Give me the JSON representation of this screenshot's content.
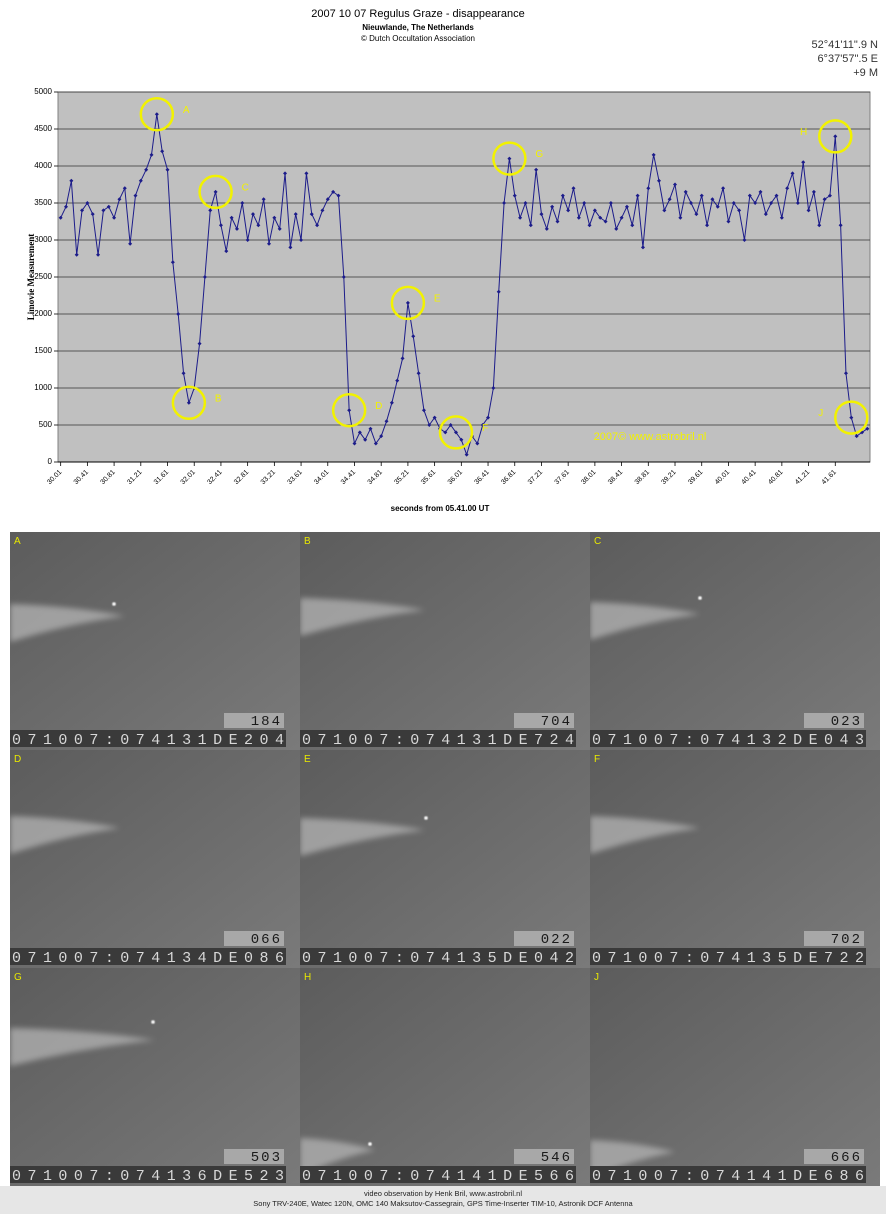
{
  "chart_data": {
    "type": "line",
    "title": "2007 10 07 Regulus Graze - disappearance",
    "subtitle": [
      "Nieuwlande, The Netherlands",
      "© Dutch Occultation Association"
    ],
    "location": [
      "52°41'11\".9 N",
      "6°37'57\".5 E",
      "+9 M"
    ],
    "ylabel": "Limovie Measurement",
    "xlabel": "seconds from 05.41.00 UT",
    "watermark": "2007© www.astrobril.nl",
    "color": "#1c1c8a",
    "grid": true,
    "ylim": [
      0,
      5000
    ],
    "yticks": [
      0,
      500,
      1000,
      1500,
      2000,
      2500,
      3000,
      3500,
      4000,
      4500,
      5000
    ],
    "xlim": [
      29.97,
      42.13
    ],
    "xticks": [
      30.01,
      30.41,
      30.81,
      31.21,
      31.61,
      32.01,
      32.41,
      32.81,
      33.21,
      33.61,
      34.01,
      34.41,
      34.81,
      35.21,
      35.61,
      36.01,
      36.41,
      36.81,
      37.21,
      37.61,
      38.01,
      38.41,
      38.81,
      39.21,
      39.61,
      40.01,
      40.41,
      40.81,
      41.21,
      41.61
    ],
    "x": [
      30.01,
      30.09,
      30.17,
      30.25,
      30.33,
      30.41,
      30.49,
      30.57,
      30.65,
      30.73,
      30.81,
      30.89,
      30.97,
      31.05,
      31.13,
      31.21,
      31.29,
      31.37,
      31.45,
      31.53,
      31.61,
      31.69,
      31.77,
      31.85,
      31.93,
      32.01,
      32.09,
      32.17,
      32.25,
      32.33,
      32.41,
      32.49,
      32.57,
      32.65,
      32.73,
      32.81,
      32.89,
      32.97,
      33.05,
      33.13,
      33.21,
      33.29,
      33.37,
      33.45,
      33.53,
      33.61,
      33.69,
      33.77,
      33.85,
      33.93,
      34.01,
      34.09,
      34.17,
      34.25,
      34.33,
      34.41,
      34.49,
      34.57,
      34.65,
      34.73,
      34.81,
      34.89,
      34.97,
      35.05,
      35.13,
      35.21,
      35.29,
      35.37,
      35.45,
      35.53,
      35.61,
      35.69,
      35.77,
      35.85,
      35.93,
      36.01,
      36.09,
      36.17,
      36.25,
      36.33,
      36.41,
      36.49,
      36.57,
      36.65,
      36.73,
      36.81,
      36.89,
      36.97,
      37.05,
      37.13,
      37.21,
      37.29,
      37.37,
      37.45,
      37.53,
      37.61,
      37.69,
      37.77,
      37.85,
      37.93,
      38.01,
      38.09,
      38.17,
      38.25,
      38.33,
      38.41,
      38.49,
      38.57,
      38.65,
      38.73,
      38.81,
      38.89,
      38.97,
      39.05,
      39.13,
      39.21,
      39.29,
      39.37,
      39.45,
      39.53,
      39.61,
      39.69,
      39.77,
      39.85,
      39.93,
      40.01,
      40.09,
      40.17,
      40.25,
      40.33,
      40.41,
      40.49,
      40.57,
      40.65,
      40.73,
      40.81,
      40.89,
      40.97,
      41.05,
      41.13,
      41.21,
      41.29,
      41.37,
      41.45,
      41.53,
      41.61,
      41.69,
      41.77,
      41.85,
      41.93,
      42.01,
      42.09
    ],
    "values": [
      3300,
      3450,
      3800,
      2800,
      3400,
      3500,
      3350,
      2800,
      3400,
      3450,
      3300,
      3550,
      3700,
      2950,
      3600,
      3800,
      3950,
      4150,
      4700,
      4200,
      3950,
      2700,
      2000,
      1200,
      800,
      1000,
      1600,
      2500,
      3400,
      3650,
      3200,
      2850,
      3300,
      3150,
      3500,
      3000,
      3350,
      3200,
      3550,
      2950,
      3300,
      3150,
      3900,
      2900,
      3350,
      3000,
      3900,
      3350,
      3200,
      3400,
      3550,
      3650,
      3600,
      2500,
      700,
      250,
      400,
      300,
      450,
      250,
      350,
      550,
      800,
      1100,
      1400,
      2150,
      1700,
      1200,
      700,
      500,
      600,
      450,
      400,
      500,
      400,
      300,
      100,
      350,
      250,
      500,
      600,
      1000,
      2300,
      3500,
      4100,
      3600,
      3300,
      3500,
      3200,
      3950,
      3350,
      3150,
      3450,
      3250,
      3600,
      3400,
      3700,
      3300,
      3500,
      3200,
      3400,
      3300,
      3250,
      3500,
      3150,
      3300,
      3450,
      3200,
      3600,
      2900,
      3700,
      4150,
      3800,
      3400,
      3550,
      3750,
      3300,
      3650,
      3500,
      3350,
      3600,
      3200,
      3550,
      3450,
      3700,
      3250,
      3500,
      3400,
      3000,
      3600,
      3500,
      3650,
      3350,
      3500,
      3600,
      3300,
      3700,
      3900,
      3500,
      4050,
      3400,
      3650,
      3200,
      3550,
      3600,
      4400,
      3200,
      1200,
      600,
      350,
      400,
      450
    ],
    "annotations": [
      {
        "label": "A",
        "x": 31.45,
        "y": 4700
      },
      {
        "label": "B",
        "x": 31.93,
        "y": 800
      },
      {
        "label": "C",
        "x": 32.33,
        "y": 3650
      },
      {
        "label": "D",
        "x": 34.33,
        "y": 700
      },
      {
        "label": "E",
        "x": 35.21,
        "y": 2150
      },
      {
        "label": "F",
        "x": 35.93,
        "y": 400
      },
      {
        "label": "G",
        "x": 36.73,
        "y": 4100
      },
      {
        "label": "H",
        "x": 41.61,
        "y": 4400
      },
      {
        "label": "J",
        "x": 41.85,
        "y": 600
      }
    ]
  },
  "frames": [
    {
      "label": "A",
      "counter": "184",
      "timestamp": "071007:074131DE204"
    },
    {
      "label": "B",
      "counter": "704",
      "timestamp": "071007:074131DE724"
    },
    {
      "label": "C",
      "counter": "023",
      "timestamp": "071007:074132DE043"
    },
    {
      "label": "D",
      "counter": "066",
      "timestamp": "071007:074134DE086"
    },
    {
      "label": "E",
      "counter": "022",
      "timestamp": "071007:074135DE042"
    },
    {
      "label": "F",
      "counter": "702",
      "timestamp": "071007:074135DE722"
    },
    {
      "label": "G",
      "counter": "503",
      "timestamp": "071007:074136DE523"
    },
    {
      "label": "H",
      "counter": "546",
      "timestamp": "071007:074141DE566"
    },
    {
      "label": "J",
      "counter": "666",
      "timestamp": "071007:074141DE686"
    }
  ],
  "footer": [
    "video observation by Henk Bril, www.astrobril.nl",
    "Sony TRV-240E, Watec 120N, OMC 140 Maksutov-Cassegrain, GPS Time-Inserter TIM-10, Astronik DCF Antenna"
  ]
}
